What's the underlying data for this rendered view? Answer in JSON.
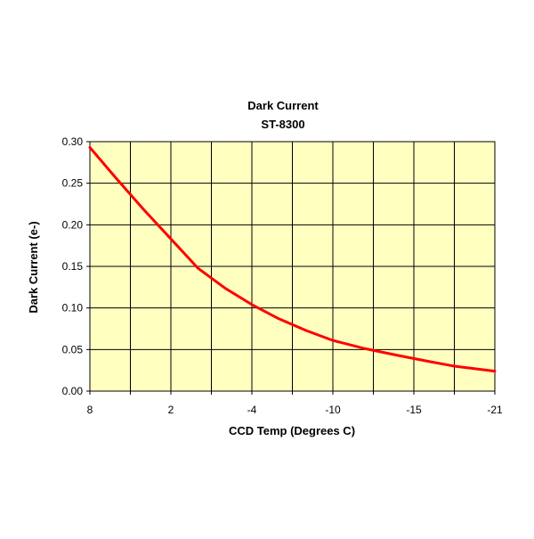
{
  "chart_data": {
    "type": "line",
    "title": "Dark Current",
    "subtitle": "ST-8300",
    "xlabel": "CCD Temp (Degrees C)",
    "ylabel": "Dark Current (e-)",
    "x_tick_labels": [
      "8",
      "2",
      "-4",
      "-10",
      "-15",
      "-21"
    ],
    "y_tick_labels": [
      "0.00",
      "0.05",
      "0.10",
      "0.15",
      "0.20",
      "0.25",
      "0.30"
    ],
    "ylim": [
      0,
      0.3
    ],
    "grid": true,
    "legend": "none",
    "plot_background": "#ffffc0",
    "series": [
      {
        "color": "#ff0000",
        "x": [
          8,
          6,
          4,
          2,
          0,
          -2,
          -4,
          -6,
          -8,
          -10,
          -12,
          -14,
          -16,
          -18,
          -20,
          -21
        ],
        "values": [
          0.293,
          0.255,
          0.218,
          0.183,
          0.148,
          0.124,
          0.104,
          0.087,
          0.073,
          0.061,
          0.051,
          0.043,
          0.036,
          0.03,
          0.026,
          0.024
        ]
      }
    ]
  }
}
